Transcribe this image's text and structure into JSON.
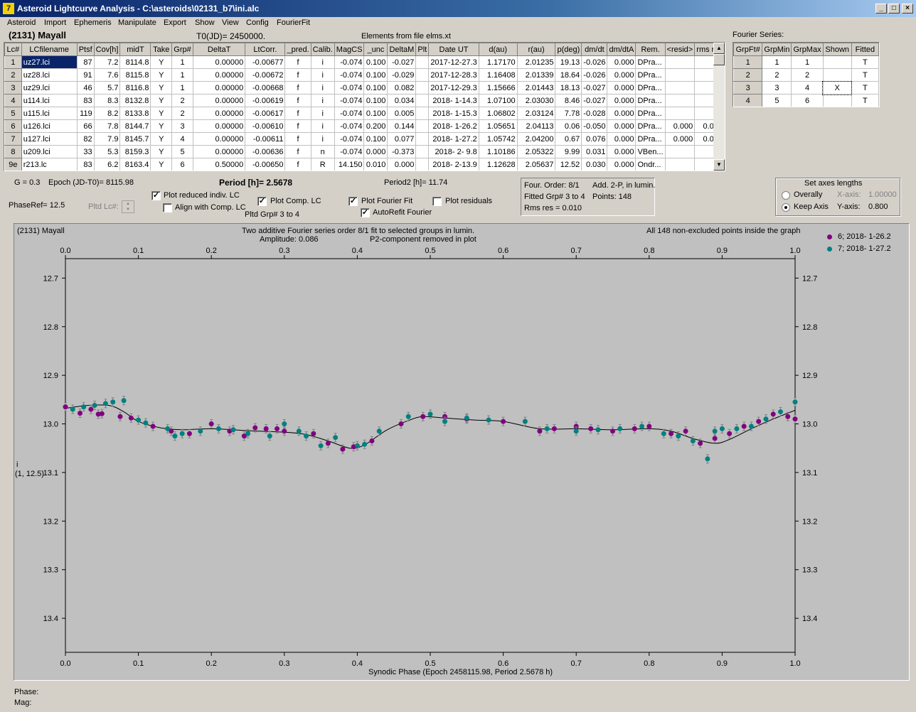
{
  "window": {
    "title": "Asteroid Lightcurve Analysis - C:\\asteroids\\02131_b7\\ini.alc",
    "icon_text": "7",
    "minimize": "_",
    "maximize": "□",
    "close": "×"
  },
  "menu": [
    "Asteroid",
    "Import",
    "Ephemeris",
    "Manipulate",
    "Export",
    "Show",
    "View",
    "Config",
    "FourierFit"
  ],
  "header": {
    "asteroid": "(2131) Mayall",
    "t0": "T0(JD)= 2450000.",
    "elements": "Elements from file elms.xt"
  },
  "lc_table": {
    "columns": [
      "Lc#",
      "LCfilename",
      "Ptsf",
      "Cov[h]",
      "midT",
      "Take",
      "Grp#",
      "DeltaT",
      "LtCorr.",
      "_pred.",
      "Calib.",
      "MagCS",
      "_unc",
      "DeltaM",
      "Plt",
      "Date UT",
      "d(au)",
      "r(au)",
      "p(deg)",
      "dm/dt",
      "dm/dtA",
      "Rem.",
      "<resid>",
      "rms res"
    ],
    "rows": [
      [
        "1",
        "uz27.lci",
        "87",
        "7.2",
        "8114.8",
        "Y",
        "1",
        "0.00000",
        "-0.00677",
        "f",
        "i",
        "-0.074",
        "0.100",
        "-0.027",
        "",
        "2017-12-27.3",
        "1.17170",
        "2.01235",
        "19.13",
        "-0.026",
        "0.000",
        "DPra...",
        "",
        ""
      ],
      [
        "2",
        "uz28.lci",
        "91",
        "7.6",
        "8115.8",
        "Y",
        "1",
        "0.00000",
        "-0.00672",
        "f",
        "i",
        "-0.074",
        "0.100",
        "-0.029",
        "",
        "2017-12-28.3",
        "1.16408",
        "2.01339",
        "18.64",
        "-0.026",
        "0.000",
        "DPra...",
        "",
        ""
      ],
      [
        "3",
        "uz29.lci",
        "46",
        "5.7",
        "8116.8",
        "Y",
        "1",
        "0.00000",
        "-0.00668",
        "f",
        "i",
        "-0.074",
        "0.100",
        "0.082",
        "",
        "2017-12-29.3",
        "1.15666",
        "2.01443",
        "18.13",
        "-0.027",
        "0.000",
        "DPra...",
        "",
        ""
      ],
      [
        "4",
        "u114.lci",
        "83",
        "8.3",
        "8132.8",
        "Y",
        "2",
        "0.00000",
        "-0.00619",
        "f",
        "i",
        "-0.074",
        "0.100",
        "0.034",
        "",
        "2018- 1-14.3",
        "1.07100",
        "2.03030",
        "8.46",
        "-0.027",
        "0.000",
        "DPra...",
        "",
        ""
      ],
      [
        "5",
        "u115.lci",
        "119",
        "8.2",
        "8133.8",
        "Y",
        "2",
        "0.00000",
        "-0.00617",
        "f",
        "i",
        "-0.074",
        "0.100",
        "0.005",
        "",
        "2018- 1-15.3",
        "1.06802",
        "2.03124",
        "7.78",
        "-0.028",
        "0.000",
        "DPra...",
        "",
        ""
      ],
      [
        "6",
        "u126.lci",
        "66",
        "7.8",
        "8144.7",
        "Y",
        "3",
        "0.00000",
        "-0.00610",
        "f",
        "i",
        "-0.074",
        "0.200",
        "0.144",
        "",
        "2018- 1-26.2",
        "1.05651",
        "2.04113",
        "0.06",
        "-0.050",
        "0.000",
        "DPra...",
        "0.000",
        "0.008"
      ],
      [
        "7",
        "u127.lci",
        "82",
        "7.9",
        "8145.7",
        "Y",
        "4",
        "0.00000",
        "-0.00611",
        "f",
        "i",
        "-0.074",
        "0.100",
        "0.077",
        "",
        "2018- 1-27.2",
        "1.05742",
        "2.04200",
        "0.67",
        "0.076",
        "0.000",
        "DPra...",
        "0.000",
        "0.010"
      ],
      [
        "8",
        "u209.lci",
        "33",
        "5.3",
        "8159.3",
        "Y",
        "5",
        "0.00000",
        "-0.00636",
        "f",
        "n",
        "-0.074",
        "0.000",
        "-0.373",
        "",
        "2018- 2- 9.8",
        "1.10186",
        "2.05322",
        "9.99",
        "0.031",
        "0.000",
        "VBen...",
        "",
        ""
      ],
      [
        "9e",
        "r213.lc",
        "83",
        "6.2",
        "8163.4",
        "Y",
        "6",
        "0.50000",
        "-0.00650",
        "f",
        "R",
        "14.150",
        "0.010",
        "0.000",
        "",
        "2018- 2-13.9",
        "1.12628",
        "2.05637",
        "12.52",
        "0.030",
        "0.000",
        "Ondr...",
        "",
        ""
      ]
    ]
  },
  "fourier_series": {
    "label": "Fourier Series:",
    "columns": [
      "GrpFt#",
      "GrpMin",
      "GrpMax",
      "Shown",
      "Fitted"
    ],
    "rows": [
      [
        "1",
        "1",
        "1",
        "",
        "T"
      ],
      [
        "2",
        "2",
        "2",
        "",
        "T"
      ],
      [
        "3",
        "3",
        "4",
        "X",
        "T"
      ],
      [
        "4",
        "5",
        "6",
        "",
        "T"
      ]
    ]
  },
  "params": {
    "g": "G = 0.3",
    "epoch": "Epoch (JD-T0)= 8115.98",
    "period": "Period [h]= 2.5678",
    "period2": "Period2 [h]= 11.74",
    "phaseref": "PhaseRef= 12.5",
    "pltd_lc": "Pltd Lc#:",
    "pltd_grp": "Pltd Grp#  3  to  4"
  },
  "checkboxes": {
    "plot_reduced": {
      "label": "Plot reduced indiv. LC",
      "checked": true
    },
    "align_comp": {
      "label": "Align with Comp. LC",
      "checked": false
    },
    "plot_comp": {
      "label": "Plot Comp. LC",
      "checked": true
    },
    "plot_fourier": {
      "label": "Plot Fourier Fit",
      "checked": true
    },
    "plot_residuals": {
      "label": "Plot residuals",
      "checked": false
    },
    "autorefit": {
      "label": "AutoRefit Fourier",
      "checked": true
    },
    "check_mark": "✓"
  },
  "fit_info": {
    "order": "Four. Order:  8/1",
    "add": "Add. 2-P, in lumin.",
    "fitted": "Fitted Grp# 3 to 4",
    "points": "Points: 148",
    "rms": "Rms res     = 0.010"
  },
  "axes_panel": {
    "title": "Set axes lengths",
    "overally": "Overally",
    "keep_axis": "Keep Axis",
    "xaxis_label": "X-axis:",
    "xaxis_value": "1.00000",
    "yaxis_label": "Y-axis:",
    "yaxis_value": "0.800"
  },
  "plot": {
    "name": "(2131) Mayall",
    "caption1": "Two additive Fourier series order 8/1 fit to selected groups in lumin.",
    "caption2": "Amplitude: 0.086",
    "caption3": "P2-component removed in plot",
    "caption_right": "All 148 non-excluded points inside the graph",
    "ylabel_line1": "i",
    "ylabel_line2": "(1, 12.5)",
    "xlabel": "Synodic Phase (Epoch 2458115.98, Period 2.5678 h)",
    "legend": [
      {
        "label": "6; 2018- 1-26.2",
        "color": "#800080"
      },
      {
        "label": "7; 2018- 1-27.2",
        "color": "#008080"
      }
    ],
    "background": "#c0c0c0"
  },
  "status": {
    "phase": "Phase:",
    "mag": "Mag:"
  },
  "chart_data": {
    "type": "scatter",
    "xlim": [
      0.0,
      1.0
    ],
    "ylim": [
      13.47,
      12.66
    ],
    "x_ticks": [
      0.0,
      0.1,
      0.2,
      0.3,
      0.4,
      0.5,
      0.6,
      0.7,
      0.8,
      0.9,
      1.0
    ],
    "x_tick_labels": [
      "0.0",
      "0.1",
      "0.2",
      "0.3",
      "0.4",
      "0.5",
      "0.6",
      "0.7",
      "0.8",
      "0.9",
      "1.0"
    ],
    "y_ticks": [
      12.7,
      12.8,
      12.9,
      13.0,
      13.1,
      13.2,
      13.3,
      13.4
    ],
    "y_tick_labels": [
      "12.7",
      "12.8",
      "12.9",
      "13.0",
      "13.1",
      "13.2",
      "13.3",
      "13.4"
    ],
    "fit_curve": {
      "x": [
        0.0,
        0.03,
        0.06,
        0.08,
        0.1,
        0.13,
        0.16,
        0.2,
        0.25,
        0.3,
        0.33,
        0.36,
        0.39,
        0.41,
        0.44,
        0.47,
        0.49,
        0.52,
        0.56,
        0.6,
        0.65,
        0.7,
        0.75,
        0.8,
        0.83,
        0.86,
        0.89,
        0.91,
        0.94,
        0.97,
        1.0
      ],
      "y": [
        12.968,
        12.962,
        12.962,
        12.975,
        12.995,
        13.008,
        13.012,
        13.01,
        13.014,
        13.017,
        13.022,
        13.035,
        13.05,
        13.043,
        13.013,
        12.993,
        12.985,
        12.988,
        12.992,
        12.995,
        13.01,
        13.01,
        13.012,
        13.01,
        13.015,
        13.03,
        13.04,
        13.032,
        13.01,
        12.99,
        12.972
      ]
    },
    "series": [
      {
        "name": "6; 2018- 1-26.2",
        "color": "#800080",
        "x": [
          0.0,
          0.02,
          0.035,
          0.045,
          0.05,
          0.075,
          0.09,
          0.12,
          0.145,
          0.17,
          0.2,
          0.225,
          0.245,
          0.26,
          0.275,
          0.29,
          0.3,
          0.34,
          0.36,
          0.38,
          0.395,
          0.42,
          0.46,
          0.49,
          0.52,
          0.55,
          0.6,
          0.65,
          0.67,
          0.7,
          0.72,
          0.75,
          0.78,
          0.8,
          0.83,
          0.85,
          0.87,
          0.89,
          0.91,
          0.93,
          0.95,
          0.97,
          0.99,
          1.0
        ],
        "y": [
          12.965,
          12.978,
          12.97,
          12.98,
          12.979,
          12.985,
          12.988,
          13.005,
          13.015,
          13.02,
          13.0,
          13.015,
          13.025,
          13.008,
          13.01,
          13.01,
          13.015,
          13.02,
          13.04,
          13.052,
          13.047,
          13.035,
          13.0,
          12.985,
          12.985,
          12.99,
          12.995,
          13.015,
          13.01,
          13.005,
          13.01,
          13.015,
          13.01,
          13.005,
          13.02,
          13.015,
          13.04,
          13.03,
          13.02,
          13.005,
          12.995,
          12.98,
          12.985,
          12.99
        ]
      },
      {
        "name": "7; 2018- 1-27.2",
        "color": "#008080",
        "x": [
          0.01,
          0.025,
          0.04,
          0.055,
          0.065,
          0.08,
          0.1,
          0.11,
          0.14,
          0.15,
          0.16,
          0.185,
          0.21,
          0.23,
          0.25,
          0.28,
          0.3,
          0.32,
          0.33,
          0.35,
          0.37,
          0.4,
          0.41,
          0.43,
          0.47,
          0.5,
          0.52,
          0.55,
          0.58,
          0.63,
          0.66,
          0.7,
          0.73,
          0.76,
          0.79,
          0.82,
          0.84,
          0.86,
          0.88,
          0.89,
          0.9,
          0.92,
          0.94,
          0.96,
          0.98,
          1.0
        ],
        "y": [
          12.97,
          12.965,
          12.962,
          12.958,
          12.955,
          12.952,
          12.992,
          12.998,
          13.01,
          13.025,
          13.02,
          13.015,
          13.01,
          13.012,
          13.02,
          13.025,
          13.0,
          13.015,
          13.025,
          13.045,
          13.028,
          13.045,
          13.042,
          13.015,
          12.985,
          12.98,
          12.995,
          12.988,
          12.992,
          12.995,
          13.01,
          13.015,
          13.012,
          13.01,
          13.005,
          13.02,
          13.025,
          13.035,
          13.072,
          13.015,
          13.01,
          13.01,
          13.005,
          12.99,
          12.975,
          12.955
        ]
      }
    ]
  }
}
